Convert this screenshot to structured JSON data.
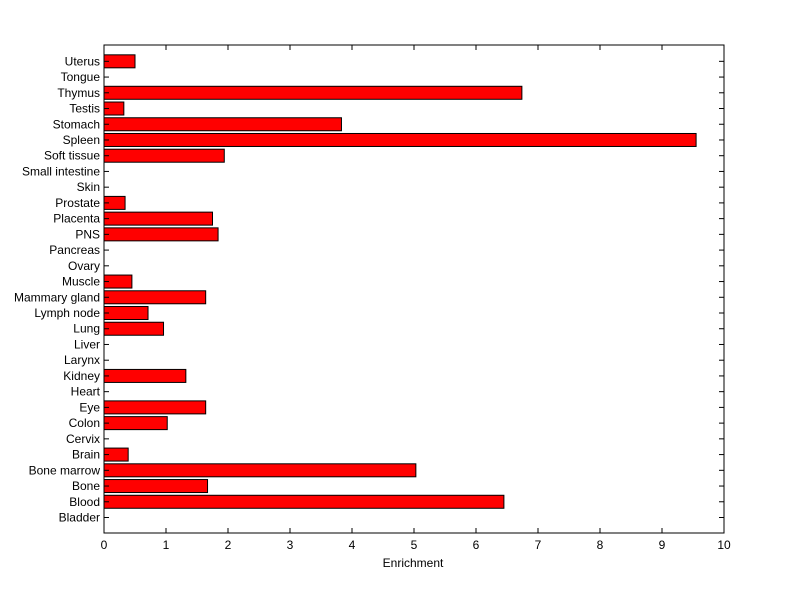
{
  "chart_data": {
    "type": "bar",
    "orientation": "horizontal",
    "title": "",
    "xlabel": "Enrichment",
    "ylabel": "",
    "xlim": [
      0,
      10
    ],
    "xticks": [
      0,
      1,
      2,
      3,
      4,
      5,
      6,
      7,
      8,
      9,
      10
    ],
    "grid": false,
    "bar_color": "#ff0000",
    "bar_edge_color": "#000000",
    "categories": [
      "Bladder",
      "Blood",
      "Bone",
      "Bone marrow",
      "Brain",
      "Cervix",
      "Colon",
      "Eye",
      "Heart",
      "Kidney",
      "Larynx",
      "Liver",
      "Lung",
      "Lymph node",
      "Mammary gland",
      "Muscle",
      "Ovary",
      "Pancreas",
      "PNS",
      "Placenta",
      "Prostate",
      "Skin",
      "Small intestine",
      "Soft tissue",
      "Spleen",
      "Stomach",
      "Testis",
      "Thymus",
      "Tongue",
      "Uterus"
    ],
    "values": [
      0,
      6.45,
      1.67,
      5.03,
      0.39,
      0,
      1.02,
      1.64,
      0,
      1.32,
      0,
      0,
      0.96,
      0.71,
      1.64,
      0.45,
      0,
      0,
      1.84,
      1.75,
      0.34,
      0,
      0,
      1.94,
      9.55,
      3.83,
      0.32,
      6.74,
      0,
      0.5
    ]
  }
}
